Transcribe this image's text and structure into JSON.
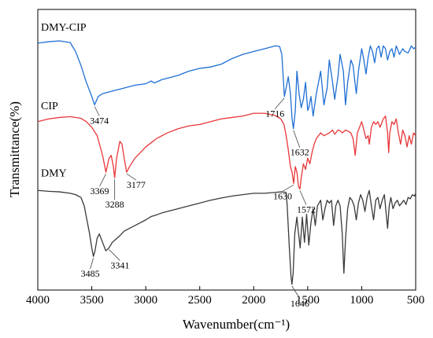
{
  "chart_data": {
    "type": "line",
    "xlabel": "Wavenumber(cm⁻¹)",
    "ylabel": "Transmittance(%)",
    "xlim": [
      4000,
      500
    ],
    "x_reversed": true,
    "x_ticks": [
      4000,
      3500,
      3000,
      2500,
      2000,
      1500,
      1000,
      500
    ],
    "y_ticks": "none",
    "y_scale": "relative (offset traces, no numeric scale)",
    "grid": false,
    "legend": "series names printed next to each trace",
    "series": [
      {
        "name": "DMY-CIP",
        "color": "#1f6fd4",
        "points": [
          [
            4000,
            0.88
          ],
          [
            3900,
            0.885
          ],
          [
            3800,
            0.888
          ],
          [
            3700,
            0.882
          ],
          [
            3650,
            0.85
          ],
          [
            3600,
            0.8
          ],
          [
            3550,
            0.74
          ],
          [
            3500,
            0.69
          ],
          [
            3474,
            0.66
          ],
          [
            3440,
            0.69
          ],
          [
            3400,
            0.7
          ],
          [
            3300,
            0.71
          ],
          [
            3200,
            0.72
          ],
          [
            3100,
            0.73
          ],
          [
            3000,
            0.735
          ],
          [
            2950,
            0.745
          ],
          [
            2920,
            0.738
          ],
          [
            2850,
            0.75
          ],
          [
            2800,
            0.755
          ],
          [
            2700,
            0.765
          ],
          [
            2600,
            0.78
          ],
          [
            2500,
            0.79
          ],
          [
            2400,
            0.795
          ],
          [
            2300,
            0.805
          ],
          [
            2200,
            0.825
          ],
          [
            2100,
            0.84
          ],
          [
            2000,
            0.85
          ],
          [
            1900,
            0.86
          ],
          [
            1800,
            0.87
          ],
          [
            1760,
            0.868
          ],
          [
            1740,
            0.84
          ],
          [
            1716,
            0.69
          ],
          [
            1700,
            0.72
          ],
          [
            1680,
            0.76
          ],
          [
            1660,
            0.7
          ],
          [
            1645,
            0.61
          ],
          [
            1632,
            0.575
          ],
          [
            1615,
            0.64
          ],
          [
            1600,
            0.78
          ],
          [
            1580,
            0.7
          ],
          [
            1560,
            0.65
          ],
          [
            1540,
            0.68
          ],
          [
            1520,
            0.74
          ],
          [
            1500,
            0.64
          ],
          [
            1490,
            0.65
          ],
          [
            1470,
            0.69
          ],
          [
            1450,
            0.62
          ],
          [
            1420,
            0.7
          ],
          [
            1380,
            0.78
          ],
          [
            1350,
            0.66
          ],
          [
            1320,
            0.72
          ],
          [
            1300,
            0.82
          ],
          [
            1270,
            0.74
          ],
          [
            1250,
            0.68
          ],
          [
            1220,
            0.76
          ],
          [
            1200,
            0.84
          ],
          [
            1170,
            0.78
          ],
          [
            1150,
            0.66
          ],
          [
            1130,
            0.74
          ],
          [
            1100,
            0.82
          ],
          [
            1080,
            0.8
          ],
          [
            1050,
            0.7
          ],
          [
            1030,
            0.78
          ],
          [
            1000,
            0.86
          ],
          [
            980,
            0.82
          ],
          [
            960,
            0.77
          ],
          [
            940,
            0.83
          ],
          [
            920,
            0.87
          ],
          [
            900,
            0.85
          ],
          [
            880,
            0.81
          ],
          [
            860,
            0.86
          ],
          [
            840,
            0.87
          ],
          [
            820,
            0.83
          ],
          [
            800,
            0.87
          ],
          [
            780,
            0.86
          ],
          [
            760,
            0.82
          ],
          [
            740,
            0.85
          ],
          [
            720,
            0.86
          ],
          [
            700,
            0.83
          ],
          [
            680,
            0.87
          ],
          [
            650,
            0.84
          ],
          [
            620,
            0.86
          ],
          [
            600,
            0.85
          ],
          [
            570,
            0.845
          ],
          [
            540,
            0.87
          ],
          [
            520,
            0.86
          ],
          [
            500,
            0.865
          ]
        ]
      },
      {
        "name": "CIP",
        "color": "#e8373a",
        "points": [
          [
            4000,
            0.6
          ],
          [
            3900,
            0.61
          ],
          [
            3800,
            0.615
          ],
          [
            3700,
            0.618
          ],
          [
            3600,
            0.612
          ],
          [
            3550,
            0.6
          ],
          [
            3500,
            0.58
          ],
          [
            3450,
            0.55
          ],
          [
            3400,
            0.48
          ],
          [
            3369,
            0.42
          ],
          [
            3340,
            0.47
          ],
          [
            3320,
            0.48
          ],
          [
            3300,
            0.44
          ],
          [
            3288,
            0.4
          ],
          [
            3270,
            0.47
          ],
          [
            3240,
            0.53
          ],
          [
            3220,
            0.52
          ],
          [
            3200,
            0.47
          ],
          [
            3177,
            0.42
          ],
          [
            3150,
            0.44
          ],
          [
            3100,
            0.47
          ],
          [
            3050,
            0.49
          ],
          [
            3000,
            0.51
          ],
          [
            2950,
            0.525
          ],
          [
            2900,
            0.54
          ],
          [
            2850,
            0.55
          ],
          [
            2800,
            0.56
          ],
          [
            2700,
            0.575
          ],
          [
            2600,
            0.585
          ],
          [
            2500,
            0.59
          ],
          [
            2400,
            0.6
          ],
          [
            2300,
            0.61
          ],
          [
            2200,
            0.615
          ],
          [
            2100,
            0.62
          ],
          [
            2000,
            0.63
          ],
          [
            1900,
            0.63
          ],
          [
            1800,
            0.622
          ],
          [
            1750,
            0.61
          ],
          [
            1720,
            0.59
          ],
          [
            1700,
            0.55
          ],
          [
            1680,
            0.5
          ],
          [
            1660,
            0.44
          ],
          [
            1645,
            0.42
          ],
          [
            1630,
            0.38
          ],
          [
            1615,
            0.44
          ],
          [
            1600,
            0.42
          ],
          [
            1585,
            0.37
          ],
          [
            1572,
            0.36
          ],
          [
            1560,
            0.4
          ],
          [
            1540,
            0.45
          ],
          [
            1520,
            0.43
          ],
          [
            1500,
            0.47
          ],
          [
            1480,
            0.45
          ],
          [
            1460,
            0.49
          ],
          [
            1440,
            0.52
          ],
          [
            1420,
            0.54
          ],
          [
            1400,
            0.55
          ],
          [
            1380,
            0.56
          ],
          [
            1350,
            0.55
          ],
          [
            1300,
            0.56
          ],
          [
            1270,
            0.57
          ],
          [
            1250,
            0.555
          ],
          [
            1220,
            0.57
          ],
          [
            1200,
            0.568
          ],
          [
            1180,
            0.56
          ],
          [
            1150,
            0.57
          ],
          [
            1120,
            0.565
          ],
          [
            1100,
            0.56
          ],
          [
            1080,
            0.54
          ],
          [
            1060,
            0.48
          ],
          [
            1040,
            0.56
          ],
          [
            1020,
            0.58
          ],
          [
            1000,
            0.6
          ],
          [
            980,
            0.57
          ],
          [
            960,
            0.54
          ],
          [
            940,
            0.55
          ],
          [
            930,
            0.52
          ],
          [
            910,
            0.58
          ],
          [
            890,
            0.6
          ],
          [
            870,
            0.59
          ],
          [
            850,
            0.6
          ],
          [
            830,
            0.58
          ],
          [
            820,
            0.59
          ],
          [
            800,
            0.61
          ],
          [
            780,
            0.62
          ],
          [
            760,
            0.56
          ],
          [
            750,
            0.49
          ],
          [
            740,
            0.56
          ],
          [
            720,
            0.6
          ],
          [
            700,
            0.59
          ],
          [
            680,
            0.61
          ],
          [
            660,
            0.56
          ],
          [
            640,
            0.52
          ],
          [
            620,
            0.57
          ],
          [
            600,
            0.55
          ],
          [
            580,
            0.51
          ],
          [
            560,
            0.55
          ],
          [
            540,
            0.52
          ],
          [
            520,
            0.56
          ],
          [
            500,
            0.55
          ]
        ]
      },
      {
        "name": "DMY",
        "color": "#3a3a3a",
        "points": [
          [
            4000,
            0.355
          ],
          [
            3900,
            0.352
          ],
          [
            3800,
            0.35
          ],
          [
            3700,
            0.345
          ],
          [
            3650,
            0.34
          ],
          [
            3600,
            0.33
          ],
          [
            3570,
            0.3
          ],
          [
            3550,
            0.26
          ],
          [
            3520,
            0.2
          ],
          [
            3500,
            0.15
          ],
          [
            3485,
            0.12
          ],
          [
            3470,
            0.14
          ],
          [
            3450,
            0.185
          ],
          [
            3430,
            0.2
          ],
          [
            3400,
            0.17
          ],
          [
            3370,
            0.14
          ],
          [
            3341,
            0.15
          ],
          [
            3310,
            0.17
          ],
          [
            3280,
            0.18
          ],
          [
            3250,
            0.19
          ],
          [
            3200,
            0.21
          ],
          [
            3150,
            0.22
          ],
          [
            3100,
            0.23
          ],
          [
            3050,
            0.24
          ],
          [
            3000,
            0.25
          ],
          [
            2950,
            0.262
          ],
          [
            2900,
            0.268
          ],
          [
            2850,
            0.275
          ],
          [
            2800,
            0.28
          ],
          [
            2700,
            0.29
          ],
          [
            2600,
            0.3
          ],
          [
            2500,
            0.31
          ],
          [
            2400,
            0.32
          ],
          [
            2300,
            0.328
          ],
          [
            2200,
            0.335
          ],
          [
            2100,
            0.34
          ],
          [
            2000,
            0.345
          ],
          [
            1900,
            0.345
          ],
          [
            1800,
            0.348
          ],
          [
            1750,
            0.35
          ],
          [
            1700,
            0.348
          ],
          [
            1690,
            0.3
          ],
          [
            1670,
            0.15
          ],
          [
            1655,
            0.05
          ],
          [
            1646,
            0.02
          ],
          [
            1635,
            0.06
          ],
          [
            1620,
            0.2
          ],
          [
            1600,
            0.26
          ],
          [
            1590,
            0.22
          ],
          [
            1570,
            0.15
          ],
          [
            1550,
            0.26
          ],
          [
            1530,
            0.17
          ],
          [
            1510,
            0.27
          ],
          [
            1490,
            0.16
          ],
          [
            1470,
            0.24
          ],
          [
            1450,
            0.29
          ],
          [
            1430,
            0.23
          ],
          [
            1410,
            0.3
          ],
          [
            1380,
            0.32
          ],
          [
            1360,
            0.25
          ],
          [
            1340,
            0.29
          ],
          [
            1320,
            0.32
          ],
          [
            1300,
            0.31
          ],
          [
            1280,
            0.32
          ],
          [
            1260,
            0.23
          ],
          [
            1240,
            0.3
          ],
          [
            1220,
            0.32
          ],
          [
            1200,
            0.3
          ],
          [
            1180,
            0.2
          ],
          [
            1165,
            0.06
          ],
          [
            1150,
            0.18
          ],
          [
            1130,
            0.29
          ],
          [
            1110,
            0.33
          ],
          [
            1090,
            0.32
          ],
          [
            1070,
            0.3
          ],
          [
            1050,
            0.25
          ],
          [
            1030,
            0.31
          ],
          [
            1010,
            0.34
          ],
          [
            990,
            0.32
          ],
          [
            970,
            0.28
          ],
          [
            950,
            0.33
          ],
          [
            930,
            0.355
          ],
          [
            910,
            0.3
          ],
          [
            890,
            0.25
          ],
          [
            870,
            0.32
          ],
          [
            850,
            0.33
          ],
          [
            830,
            0.29
          ],
          [
            810,
            0.32
          ],
          [
            790,
            0.34
          ],
          [
            770,
            0.26
          ],
          [
            760,
            0.22
          ],
          [
            745,
            0.3
          ],
          [
            730,
            0.33
          ],
          [
            710,
            0.29
          ],
          [
            690,
            0.31
          ],
          [
            670,
            0.32
          ],
          [
            650,
            0.3
          ],
          [
            630,
            0.31
          ],
          [
            610,
            0.32
          ],
          [
            590,
            0.305
          ],
          [
            570,
            0.33
          ],
          [
            550,
            0.325
          ],
          [
            530,
            0.34
          ],
          [
            510,
            0.335
          ],
          [
            500,
            0.345
          ]
        ]
      }
    ],
    "peak_annotations": [
      {
        "series": "DMY-CIP",
        "label": "3474",
        "x": 3474
      },
      {
        "series": "DMY-CIP",
        "label": "1716",
        "x": 1716
      },
      {
        "series": "DMY-CIP",
        "label": "1632",
        "x": 1632
      },
      {
        "series": "CIP",
        "label": "3369",
        "x": 3369
      },
      {
        "series": "CIP",
        "label": "3288",
        "x": 3288
      },
      {
        "series": "CIP",
        "label": "3177",
        "x": 3177
      },
      {
        "series": "CIP",
        "label": "1630",
        "x": 1630
      },
      {
        "series": "CIP",
        "label": "1572",
        "x": 1572
      },
      {
        "series": "DMY",
        "label": "3485",
        "x": 3485
      },
      {
        "series": "DMY",
        "label": "3341",
        "x": 3341
      },
      {
        "series": "DMY",
        "label": "1646",
        "x": 1646
      }
    ]
  }
}
